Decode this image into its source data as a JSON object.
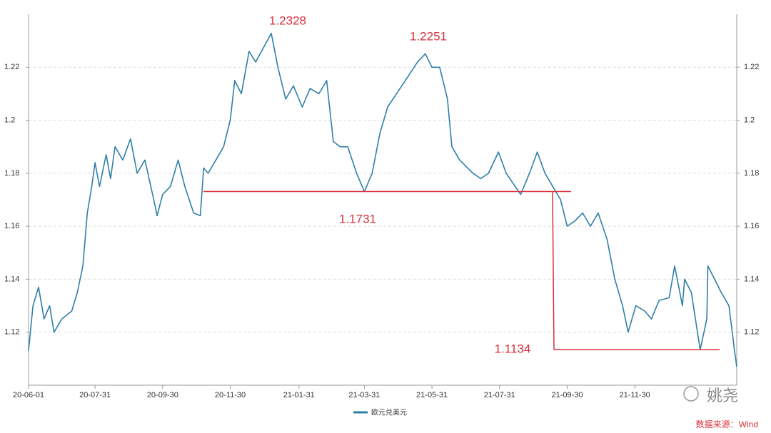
{
  "chart_data": {
    "type": "line",
    "x": [
      "20-06-01",
      "20-06-05",
      "20-06-10",
      "20-06-15",
      "20-06-20",
      "20-06-24",
      "20-07-01",
      "20-07-10",
      "20-07-15",
      "20-07-20",
      "20-07-24",
      "20-07-28",
      "20-07-31",
      "20-08-04",
      "20-08-10",
      "20-08-14",
      "20-08-18",
      "20-08-25",
      "20-09-01",
      "20-09-07",
      "20-09-14",
      "20-09-22",
      "20-09-25",
      "20-09-30",
      "20-10-07",
      "20-10-14",
      "20-10-20",
      "20-10-28",
      "20-11-03",
      "20-11-06",
      "20-11-10",
      "20-11-17",
      "20-11-24",
      "20-11-30",
      "20-12-04",
      "20-12-10",
      "20-12-17",
      "20-12-23",
      "21-01-06",
      "21-01-12",
      "21-01-19",
      "21-01-26",
      "21-02-03",
      "21-02-10",
      "21-02-18",
      "21-02-25",
      "21-03-03",
      "21-03-09",
      "21-03-16",
      "21-03-24",
      "21-03-31",
      "21-04-07",
      "21-04-14",
      "21-04-21",
      "21-04-29",
      "21-05-07",
      "21-05-18",
      "21-05-25",
      "21-05-31",
      "21-06-07",
      "21-06-14",
      "21-06-18",
      "21-06-25",
      "21-07-07",
      "21-07-14",
      "21-07-21",
      "21-07-30",
      "21-08-06",
      "21-08-19",
      "21-08-27",
      "21-09-03",
      "21-09-10",
      "21-09-24",
      "21-09-30",
      "21-10-07",
      "21-10-14",
      "21-10-21",
      "21-10-28",
      "21-11-05",
      "21-11-12",
      "21-11-19",
      "21-11-24",
      "21-12-01",
      "21-12-09",
      "21-12-15",
      "21-12-22",
      "21-12-31",
      "22-01-05",
      "22-01-12",
      "22-01-14",
      "22-01-20",
      "22-01-28",
      "22-02-03",
      "22-02-04",
      "22-02-10",
      "22-02-16",
      "22-02-23",
      "22-02-28",
      "22-03-02"
    ],
    "series": [
      {
        "name": "欧元兑美元",
        "color": "#2e7fa8",
        "values": [
          1.113,
          1.13,
          1.137,
          1.125,
          1.13,
          1.12,
          1.125,
          1.128,
          1.135,
          1.145,
          1.165,
          1.175,
          1.184,
          1.175,
          1.187,
          1.178,
          1.19,
          1.185,
          1.193,
          1.18,
          1.185,
          1.17,
          1.164,
          1.172,
          1.175,
          1.185,
          1.175,
          1.165,
          1.164,
          1.182,
          1.18,
          1.185,
          1.19,
          1.2,
          1.215,
          1.21,
          1.226,
          1.222,
          1.2328,
          1.22,
          1.208,
          1.213,
          1.205,
          1.212,
          1.21,
          1.215,
          1.192,
          1.19,
          1.19,
          1.18,
          1.1731,
          1.18,
          1.195,
          1.205,
          1.21,
          1.215,
          1.222,
          1.2251,
          1.22,
          1.22,
          1.208,
          1.19,
          1.185,
          1.18,
          1.178,
          1.18,
          1.188,
          1.18,
          1.172,
          1.18,
          1.188,
          1.18,
          1.17,
          1.16,
          1.162,
          1.165,
          1.16,
          1.165,
          1.155,
          1.14,
          1.13,
          1.12,
          1.13,
          1.128,
          1.125,
          1.132,
          1.133,
          1.145,
          1.13,
          1.14,
          1.135,
          1.1134,
          1.125,
          1.145,
          1.14,
          1.135,
          1.13,
          1.113,
          1.107
        ]
      }
    ],
    "xlim": [
      "20-06-01",
      "22-03-02"
    ],
    "xticks": [
      "20-06-01",
      "20-07-31",
      "20-09-30",
      "20-11-30",
      "21-01-31",
      "21-03-31",
      "21-05-31",
      "21-07-31",
      "21-09-30",
      "21-11-30"
    ],
    "ylim": [
      1.1,
      1.24
    ],
    "yticks": [
      1.12,
      1.14,
      1.16,
      1.18,
      1.2,
      1.22
    ],
    "grid": true,
    "annotations": [
      {
        "value": 1.2328
      },
      {
        "value": 1.2251
      },
      {
        "value": 1.1731
      },
      {
        "value": 1.1134
      }
    ],
    "annotation_color": "#d9303a",
    "source": "数据来源：Wind",
    "watermark": "姚尧"
  }
}
